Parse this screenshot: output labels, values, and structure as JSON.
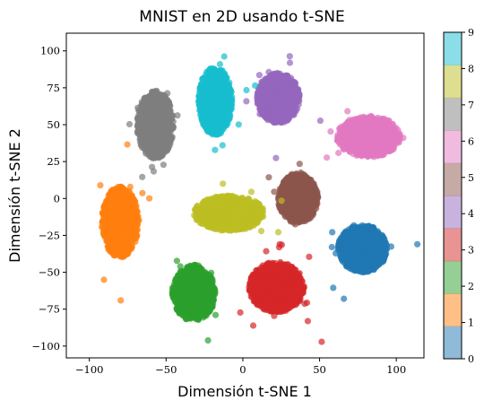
{
  "chart_data": {
    "type": "scatter",
    "title": "MNIST en 2D usando t-SNE",
    "xlabel": "Dimensión t-SNE 1",
    "ylabel": "Dimensión t-SNE 2",
    "xlim": [
      -115,
      118
    ],
    "ylim": [
      -108,
      112
    ],
    "x_ticks": [
      -100,
      -50,
      0,
      50,
      100
    ],
    "y_ticks": [
      -100,
      -75,
      -50,
      -25,
      0,
      25,
      50,
      75,
      100
    ],
    "grid": false,
    "point_alpha": 0.7,
    "colorbar": {
      "label": "",
      "range": [
        0,
        9
      ],
      "ticks": [
        0,
        1,
        2,
        3,
        4,
        5,
        6,
        7,
        8,
        9
      ],
      "colors": [
        "#1f77b4",
        "#ff7f0e",
        "#2ca02c",
        "#d62728",
        "#9467bd",
        "#8c564b",
        "#e377c2",
        "#7f7f7f",
        "#bcbd22",
        "#17becf"
      ]
    },
    "clusters": [
      {
        "digit": 0,
        "center": [
          78,
          -34
        ],
        "spread": [
          16,
          16
        ],
        "color": "#1f77b4"
      },
      {
        "digit": 1,
        "center": [
          -80,
          -16
        ],
        "spread": [
          12,
          24
        ],
        "color": "#ff7f0e"
      },
      {
        "digit": 2,
        "center": [
          -32,
          -64
        ],
        "spread": [
          14,
          19
        ],
        "color": "#2ca02c"
      },
      {
        "digit": 3,
        "center": [
          22,
          -60
        ],
        "spread": [
          18,
          17
        ],
        "color": "#d62728"
      },
      {
        "digit": 4,
        "center": [
          23,
          68
        ],
        "spread": [
          14,
          17
        ],
        "color": "#9467bd"
      },
      {
        "digit": 5,
        "center": [
          36,
          0
        ],
        "spread": [
          13,
          17
        ],
        "color": "#8c564b"
      },
      {
        "digit": 6,
        "center": [
          82,
          42
        ],
        "spread": [
          21,
          14
        ],
        "color": "#e377c2"
      },
      {
        "digit": 7,
        "center": [
          -57,
          50
        ],
        "spread": [
          12,
          23
        ],
        "color": "#7f7f7f"
      },
      {
        "digit": 8,
        "center": [
          -9,
          -10
        ],
        "spread": [
          23,
          12
        ],
        "color": "#bcbd22"
      },
      {
        "digit": 9,
        "center": [
          -18,
          66
        ],
        "spread": [
          11,
          23
        ],
        "color": "#17becf"
      }
    ]
  }
}
